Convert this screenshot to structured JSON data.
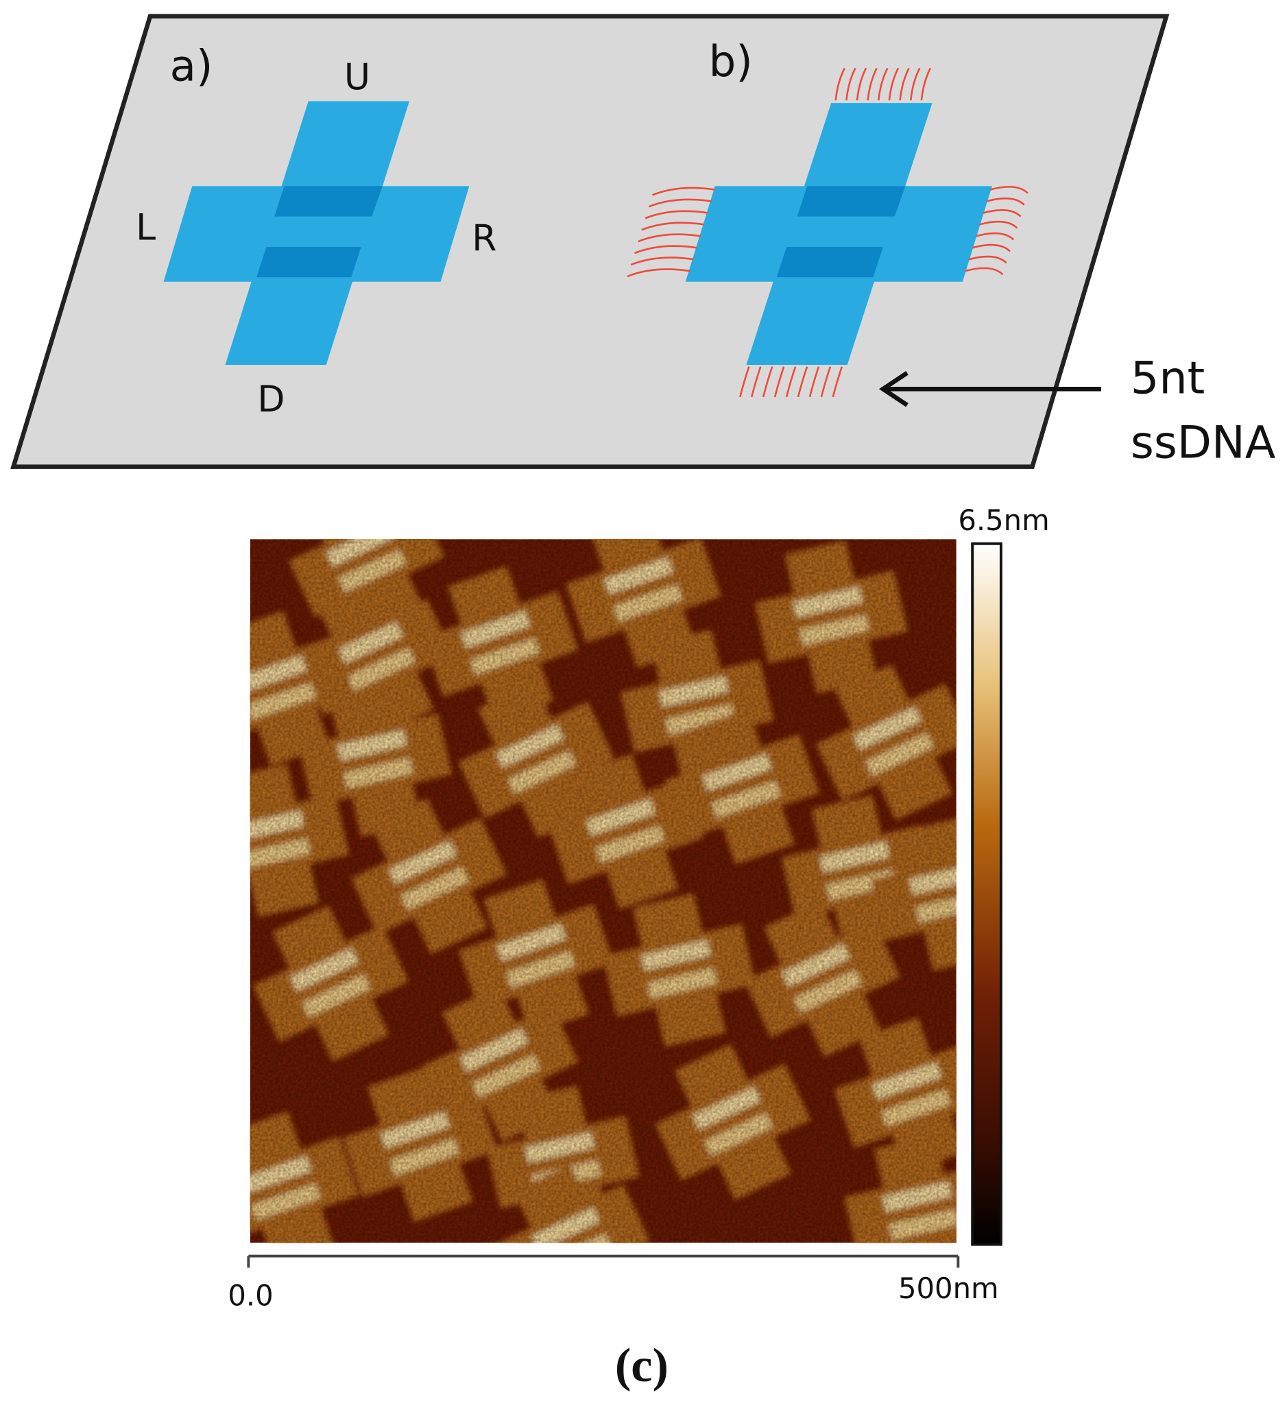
{
  "panel_a": {
    "label": "a)",
    "up": "U",
    "left": "L",
    "right": "R",
    "down": "D"
  },
  "panel_b": {
    "label": "b)",
    "annotation_line1": "5nt",
    "annotation_line2": "ssDNA"
  },
  "panel_c": {
    "colorbar_max": "6.5nm",
    "scale_start": "0.0",
    "scale_end": "500nm",
    "caption": "(c)"
  }
}
